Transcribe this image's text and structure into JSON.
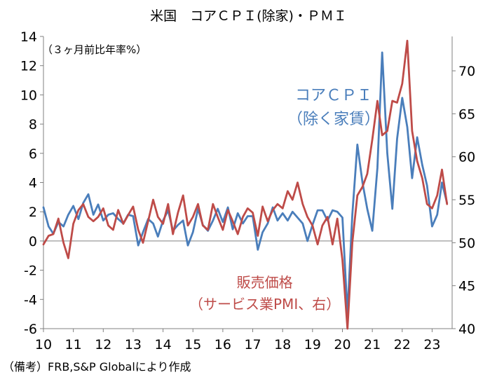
{
  "title": "米国　コアＣＰＩ(除家)・ＰＭＩ",
  "note": "（３ヶ月前比年率%）",
  "source": "（備考）FRB,S&P Globalにより作成",
  "labels": {
    "cpi_line1": "コアＣＰＩ",
    "cpi_line2": "（除く家賃）",
    "pmi_line1": "販売価格",
    "pmi_line2": "（サービス業PMI、右）"
  },
  "colors": {
    "cpi": "#4a7ebb",
    "pmi": "#be4b48",
    "axis": "#808080"
  },
  "chart_data": {
    "type": "line",
    "title": "米国　コアＣＰＩ(除家)・ＰＭＩ",
    "x_ticks": [
      "10",
      "11",
      "12",
      "13",
      "14",
      "15",
      "16",
      "17",
      "18",
      "19",
      "20",
      "21",
      "22",
      "23"
    ],
    "x_range": [
      2010.0,
      2023.67
    ],
    "left_axis": {
      "ylim": [
        -6,
        14
      ],
      "ticks": [
        "-6",
        "-4",
        "-2",
        "0",
        "2",
        "4",
        "6",
        "8",
        "10",
        "12",
        "14"
      ]
    },
    "right_axis": {
      "ylim": [
        40,
        74
      ],
      "ticks": [
        "40",
        "45",
        "50",
        "55",
        "60",
        "65",
        "70"
      ]
    },
    "series": [
      {
        "name": "コアＣＰＩ（除く家賃）",
        "axis": "left",
        "x": [
          2010.0,
          2010.17,
          2010.33,
          2010.5,
          2010.67,
          2010.83,
          2011.0,
          2011.17,
          2011.33,
          2011.5,
          2011.67,
          2011.83,
          2012.0,
          2012.17,
          2012.33,
          2012.5,
          2012.67,
          2012.83,
          2013.0,
          2013.17,
          2013.33,
          2013.5,
          2013.67,
          2013.83,
          2014.0,
          2014.17,
          2014.33,
          2014.5,
          2014.67,
          2014.83,
          2015.0,
          2015.17,
          2015.33,
          2015.5,
          2015.67,
          2015.83,
          2016.0,
          2016.17,
          2016.33,
          2016.5,
          2016.67,
          2016.83,
          2017.0,
          2017.17,
          2017.33,
          2017.5,
          2017.67,
          2017.83,
          2018.0,
          2018.17,
          2018.33,
          2018.5,
          2018.67,
          2018.83,
          2019.0,
          2019.17,
          2019.33,
          2019.5,
          2019.67,
          2019.83,
          2020.0,
          2020.17,
          2020.33,
          2020.5,
          2020.67,
          2020.83,
          2021.0,
          2021.17,
          2021.33,
          2021.5,
          2021.67,
          2021.83,
          2022.0,
          2022.17,
          2022.33,
          2022.5,
          2022.67,
          2022.83,
          2023.0,
          2023.17,
          2023.33,
          2023.5
        ],
        "values": [
          2.3,
          1.0,
          0.5,
          1.3,
          1.0,
          1.8,
          2.4,
          1.5,
          2.6,
          3.2,
          1.8,
          2.5,
          1.4,
          1.8,
          1.9,
          1.5,
          1.2,
          1.8,
          1.7,
          -0.3,
          0.6,
          1.5,
          1.2,
          0.3,
          1.4,
          2.1,
          0.7,
          1.1,
          1.4,
          -0.3,
          0.6,
          2.2,
          1.1,
          0.7,
          1.4,
          2.2,
          1.3,
          2.3,
          0.8,
          1.9,
          1.2,
          1.7,
          1.7,
          -0.6,
          0.6,
          1.2,
          2.3,
          1.4,
          1.9,
          1.4,
          2.0,
          1.6,
          1.2,
          0.0,
          1.1,
          2.1,
          2.1,
          1.4,
          2.1,
          2.0,
          1.6,
          -5.0,
          1.8,
          6.6,
          4.0,
          2.2,
          0.7,
          5.0,
          12.9,
          6.0,
          2.2,
          7.0,
          9.8,
          7.8,
          4.3,
          7.1,
          5.2,
          3.8,
          1.0,
          1.8,
          4.0,
          2.6
        ]
      },
      {
        "name": "販売価格（サービス業PMI、右）",
        "axis": "right",
        "x": [
          2010.0,
          2010.17,
          2010.33,
          2010.5,
          2010.67,
          2010.83,
          2011.0,
          2011.17,
          2011.33,
          2011.5,
          2011.67,
          2011.83,
          2012.0,
          2012.17,
          2012.33,
          2012.5,
          2012.67,
          2012.83,
          2013.0,
          2013.17,
          2013.33,
          2013.5,
          2013.67,
          2013.83,
          2014.0,
          2014.17,
          2014.33,
          2014.5,
          2014.67,
          2014.83,
          2015.0,
          2015.17,
          2015.33,
          2015.5,
          2015.67,
          2015.83,
          2016.0,
          2016.17,
          2016.33,
          2016.5,
          2016.67,
          2016.83,
          2017.0,
          2017.17,
          2017.33,
          2017.5,
          2017.67,
          2017.83,
          2018.0,
          2018.17,
          2018.33,
          2018.5,
          2018.67,
          2018.83,
          2019.0,
          2019.17,
          2019.33,
          2019.5,
          2019.67,
          2019.83,
          2020.0,
          2020.17,
          2020.33,
          2020.5,
          2020.67,
          2020.83,
          2021.0,
          2021.17,
          2021.33,
          2021.5,
          2021.67,
          2021.83,
          2022.0,
          2022.17,
          2022.33,
          2022.5,
          2022.67,
          2022.83,
          2023.0,
          2023.17,
          2023.33,
          2023.5
        ],
        "values": [
          49.8,
          50.8,
          51.0,
          52.8,
          50.0,
          48.2,
          52.2,
          53.8,
          54.5,
          53.0,
          52.5,
          53.0,
          54.0,
          52.0,
          51.5,
          53.8,
          52.2,
          53.2,
          54.2,
          51.5,
          50.0,
          52.5,
          55.0,
          53.0,
          52.2,
          54.5,
          51.0,
          53.5,
          55.5,
          52.0,
          53.0,
          54.5,
          52.0,
          51.5,
          54.5,
          53.0,
          51.5,
          53.8,
          52.5,
          51.0,
          53.0,
          54.0,
          53.5,
          50.8,
          54.2,
          52.5,
          53.8,
          54.5,
          54.0,
          56.0,
          55.0,
          57.0,
          54.5,
          53.0,
          52.0,
          49.8,
          52.0,
          53.0,
          49.8,
          52.8,
          48.0,
          40.0,
          50.0,
          55.5,
          56.5,
          58.0,
          62.0,
          66.5,
          62.5,
          63.0,
          66.5,
          66.3,
          68.5,
          73.5,
          63.0,
          59.5,
          57.5,
          54.5,
          54.0,
          55.5,
          58.5,
          54.5
        ]
      }
    ]
  }
}
